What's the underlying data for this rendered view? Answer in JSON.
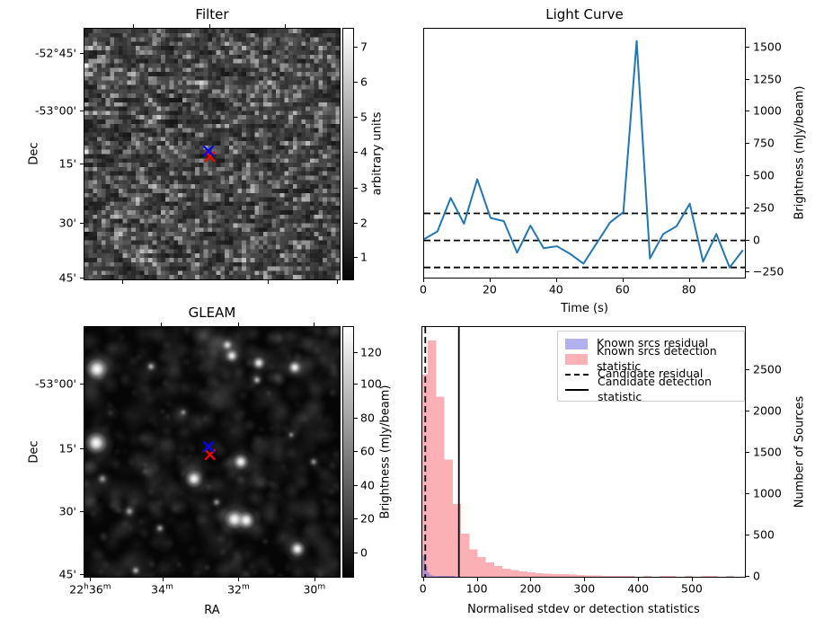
{
  "panels": {
    "filter": {
      "title": "Filter",
      "ylabel": "Dec",
      "ytick_labels": [
        "-52°45'",
        "-53°00'",
        "15'",
        "30'",
        "45'"
      ],
      "colorbar": {
        "label": "arbitrary units",
        "tick_labels": [
          "7",
          "6",
          "5",
          "4",
          "3",
          "2",
          "1"
        ]
      },
      "markers": [
        {
          "name": "known-source-position-marker",
          "shape": "x",
          "color": "#ff0000",
          "fx": 0.492,
          "fy": 0.51
        },
        {
          "name": "candidate-position-marker",
          "shape": "x",
          "color": "#0000ff",
          "fx": 0.486,
          "fy": 0.4875
        }
      ]
    },
    "light_curve": {
      "title": "Light Curve",
      "xlabel": "Time (s)",
      "ylabel": "Brightness (mJy/beam)"
    },
    "gleam": {
      "title": "GLEAM",
      "xlabel": "RA",
      "ylabel": "Dec",
      "xtick_labels": [
        "22h36m",
        "34m",
        "32m",
        "30m"
      ],
      "ytick_labels": [
        "-53°00'",
        "15'",
        "30'",
        "45'"
      ],
      "colorbar": {
        "label": "Brightness (mJy/beam)",
        "tick_labels": [
          "120",
          "100",
          "80",
          "60",
          "40",
          "20",
          "0"
        ]
      },
      "markers": [
        {
          "name": "known-source-position-marker",
          "shape": "x",
          "color": "#ff0000",
          "fx": 0.492,
          "fy": 0.511
        },
        {
          "name": "candidate-position-marker",
          "shape": "x",
          "color": "#0000ff",
          "fx": 0.486,
          "fy": 0.479
        }
      ]
    },
    "histogram": {
      "xlabel": "Normalised stdev or detection statistics",
      "ylabel": "Number of Sources",
      "legend": [
        {
          "label": "Known srcs residual",
          "swatch": "patch",
          "color": "#b2b1ee"
        },
        {
          "label": "Known srcs detection statistic",
          "swatch": "patch",
          "color": "#fbb1b5"
        },
        {
          "label": "Candidate residual",
          "swatch": "dashed-line",
          "color": "#000000"
        },
        {
          "label": "Candidate detection statistic",
          "swatch": "solid-line",
          "color": "#000000"
        }
      ]
    }
  },
  "chart_data": [
    {
      "type": "line",
      "title": "Light Curve",
      "xlabel": "Time (s)",
      "ylabel": "Brightness (mJy/beam)",
      "x": [
        0,
        4,
        8,
        12,
        16,
        20,
        24,
        28,
        32,
        36,
        40,
        44,
        48,
        52,
        56,
        60,
        64,
        68,
        72,
        76,
        80,
        84,
        88,
        92,
        96
      ],
      "y": [
        10,
        70,
        330,
        130,
        475,
        175,
        150,
        -95,
        115,
        -60,
        -45,
        -105,
        -180,
        -20,
        140,
        220,
        1550,
        -140,
        50,
        110,
        285,
        -165,
        50,
        -210,
        -75
      ],
      "line_color": "#1f77b4",
      "dashed_hlines": [
        210,
        0,
        -210
      ],
      "xlim": [
        0,
        96.6
      ],
      "ylim": [
        -289,
        1645
      ],
      "xticks": [
        0,
        20,
        40,
        60,
        80
      ],
      "yticks": [
        1500,
        1250,
        1000,
        750,
        500,
        250,
        0,
        -250
      ],
      "grid": false,
      "legend": "none"
    },
    {
      "type": "bar",
      "subtype": "histogram",
      "xlabel": "Normalised stdev or detection statistics",
      "ylabel": "Number of Sources",
      "series": [
        {
          "name": "Known srcs detection statistic",
          "color": "rgba(247,97,109,0.5)",
          "bin_start": -8,
          "bin_width": 15.4,
          "counts": [
            2450,
            2860,
            2180,
            1420,
            880,
            520,
            330,
            240,
            175,
            130,
            100,
            80,
            65,
            55,
            45,
            40,
            34,
            30,
            26,
            22,
            18,
            15,
            12,
            10,
            8,
            10,
            0,
            6,
            0,
            8,
            6,
            0,
            5,
            0,
            8,
            6,
            0,
            8
          ]
        },
        {
          "name": "Known srcs residual",
          "color": "rgba(101,99,221,0.5)",
          "bin_start": -2,
          "bin_width": 4,
          "counts": [
            260,
            130,
            55,
            28,
            15,
            9,
            6,
            4,
            3,
            2,
            2,
            1,
            1,
            1,
            1
          ]
        }
      ],
      "vlines": [
        {
          "name": "Candidate residual",
          "style": "dashed",
          "x": 2.5
        },
        {
          "name": "Candidate detection statistic",
          "style": "solid",
          "x": 65
        }
      ],
      "xlim": [
        -3,
        597
      ],
      "ylim": [
        0,
        3024
      ],
      "xticks": [
        0,
        100,
        200,
        300,
        400,
        500
      ],
      "yticks": [
        0,
        500,
        1000,
        1500,
        2000,
        2500
      ],
      "grid": false,
      "legend_position": "upper right"
    }
  ]
}
